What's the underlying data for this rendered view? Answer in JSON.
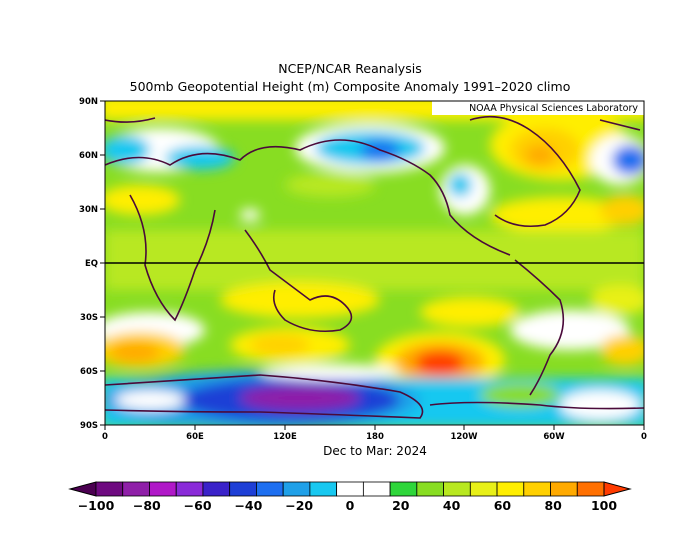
{
  "title": "NCEP/NCAR Reanalysis",
  "subtitle": "500mb Geopotential Height (m) Composite Anomaly 1991–2020 climo",
  "credit": "NOAA Physical Sciences Laboratory",
  "period": "Dec to Mar: 2024",
  "x_tick_labels": [
    "0",
    "60E",
    "120E",
    "180",
    "120W",
    "60W",
    "0"
  ],
  "y_tick_labels": [
    "90N",
    "60N",
    "30N",
    "EQ",
    "30S",
    "60S",
    "90S"
  ],
  "colorbar": {
    "tick_labels": [
      "−100",
      "−80",
      "−60",
      "−40",
      "−20",
      "0",
      "20",
      "40",
      "60",
      "80",
      "100"
    ],
    "colors": [
      "#4b0051",
      "#6e0a80",
      "#8f1fa8",
      "#b018c8",
      "#8a2bd8",
      "#3a22c9",
      "#1e3fd6",
      "#1e6ff0",
      "#1fa0e8",
      "#18c8f0",
      "#ffffff",
      "#ffffff",
      "#2ed63a",
      "#88dd22",
      "#b8e820",
      "#e8f018",
      "#ffee00",
      "#ffd000",
      "#ffaa00",
      "#ff7000",
      "#ff3b00"
    ],
    "range": [
      -100,
      100
    ],
    "step": 10
  }
}
